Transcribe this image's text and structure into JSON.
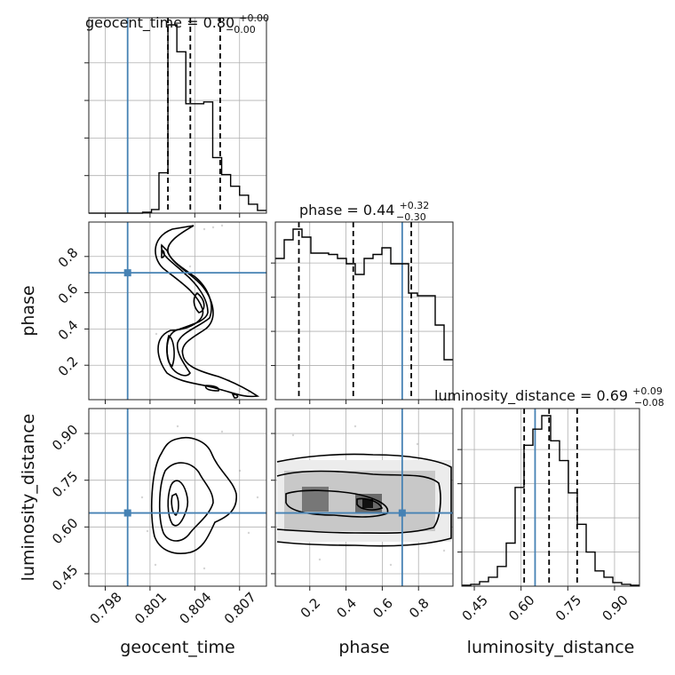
{
  "chart_data": {
    "type": "corner",
    "parameters": [
      "geocent_time",
      "phase",
      "luminosity_distance"
    ],
    "truths": {
      "geocent_time": 0.7995,
      "phase": 0.71,
      "luminosity_distance": 0.645
    },
    "ranges": {
      "geocent_time": [
        0.7969,
        0.8088
      ],
      "phase": [
        0.01,
        0.99
      ],
      "luminosity_distance": [
        0.41,
        0.98
      ]
    },
    "ticks": {
      "geocent_time": [
        "0.798",
        "0.801",
        "0.804",
        "0.807"
      ],
      "phase": [
        "0.2",
        "0.4",
        "0.6",
        "0.8"
      ],
      "luminosity_distance": [
        "0.45",
        "0.60",
        "0.75",
        "0.90"
      ]
    },
    "titles": {
      "geocent_time": {
        "text": "geocent_time = 0.80",
        "sup": "+0.00",
        "sub": "−0.00"
      },
      "phase": {
        "text": "phase = 0.44",
        "sup": "+0.32",
        "sub": "−0.30"
      },
      "luminosity_distance": {
        "text": "luminosity_distance = 0.69",
        "sup": "+0.09",
        "sub": "−0.08"
      }
    },
    "quantiles": {
      "geocent_time": [
        0.8022,
        0.8037,
        0.8057
      ],
      "phase": [
        0.14,
        0.44,
        0.76
      ],
      "luminosity_distance": [
        0.61,
        0.69,
        0.78
      ]
    },
    "histograms": {
      "geocent_time": {
        "edges": [
          0.7969,
          0.7975,
          0.7981,
          0.7987,
          0.7993,
          0.7999,
          0.8005,
          0.8011,
          0.8016,
          0.8022,
          0.8028,
          0.8034,
          0.804,
          0.8046,
          0.8052,
          0.8058,
          0.8064,
          0.807,
          0.8076,
          0.8082,
          0.8088
        ],
        "counts": [
          0,
          0,
          0,
          0,
          0,
          0,
          1,
          4,
          45,
          210,
          180,
          122,
          122,
          124,
          62,
          43,
          30,
          20,
          10,
          3
        ]
      },
      "phase": {
        "edges": [
          0.01,
          0.059,
          0.108,
          0.157,
          0.206,
          0.255,
          0.304,
          0.353,
          0.402,
          0.451,
          0.5,
          0.549,
          0.598,
          0.647,
          0.696,
          0.745,
          0.794,
          0.843,
          0.892,
          0.941,
          0.99
        ],
        "counts": [
          106,
          120,
          128,
          122,
          110,
          110,
          109,
          106,
          102,
          94,
          106,
          109,
          114,
          102,
          102,
          80,
          78,
          78,
          56,
          30
        ]
      },
      "luminosity_distance": {
        "edges": [
          0.41,
          0.4385,
          0.467,
          0.4955,
          0.524,
          0.5525,
          0.581,
          0.6095,
          0.638,
          0.6665,
          0.695,
          0.7235,
          0.752,
          0.7805,
          0.809,
          0.8375,
          0.866,
          0.8945,
          0.923,
          0.9515,
          0.98
        ],
        "counts": [
          1,
          2,
          5,
          10,
          22,
          48,
          110,
          157,
          175,
          190,
          162,
          140,
          104,
          69,
          38,
          17,
          10,
          4,
          2,
          1
        ]
      }
    }
  }
}
